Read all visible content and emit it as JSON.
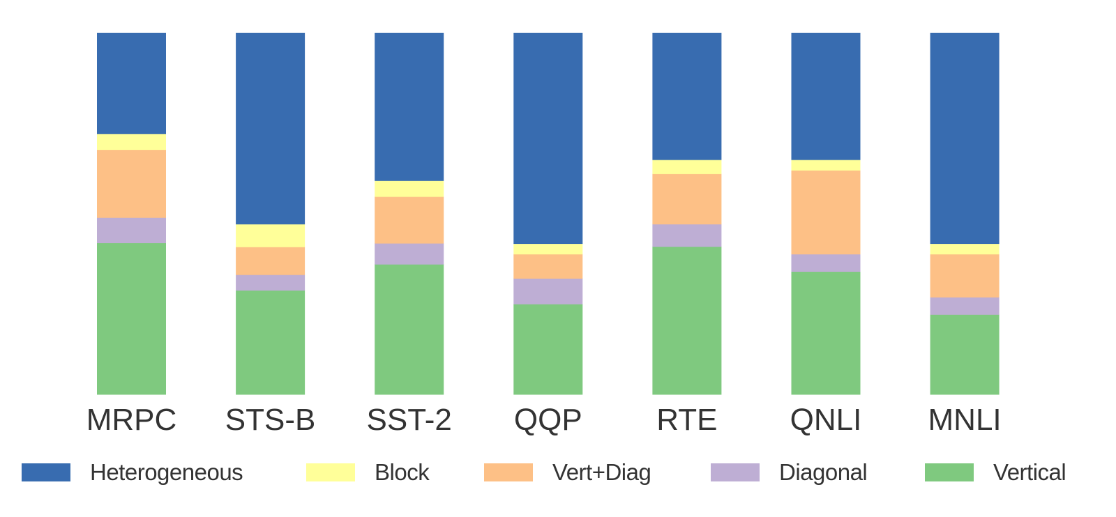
{
  "chart_data": {
    "type": "bar",
    "stacked": true,
    "normalized": true,
    "title": "",
    "xlabel": "",
    "ylabel": "",
    "ylim": [
      0,
      100
    ],
    "grid": false,
    "legend_position": "bottom",
    "categories": [
      "MRPC",
      "STS-B",
      "SST-2",
      "QQP",
      "RTE",
      "QNLI",
      "MNLI"
    ],
    "series": [
      {
        "name": "Vertical",
        "color": "#7fc97f",
        "values": [
          41.9,
          28.8,
          36.0,
          25.0,
          40.9,
          34.0,
          22.1
        ]
      },
      {
        "name": "Diagonal",
        "color": "#beaed4",
        "values": [
          7.0,
          4.3,
          5.8,
          7.1,
          6.2,
          4.8,
          4.8
        ]
      },
      {
        "name": "Vert+Diag",
        "color": "#fdc086",
        "values": [
          18.8,
          7.7,
          12.9,
          6.7,
          13.9,
          23.2,
          11.9
        ]
      },
      {
        "name": "Block",
        "color": "#ffff99",
        "values": [
          4.4,
          6.3,
          4.4,
          2.9,
          3.9,
          2.9,
          2.9
        ]
      },
      {
        "name": "Heterogeneous",
        "color": "#386cb0",
        "values": [
          27.9,
          52.9,
          40.9,
          58.3,
          35.1,
          35.1,
          58.3
        ]
      }
    ],
    "legend": [
      {
        "label": "Heterogeneous",
        "color": "#386cb0"
      },
      {
        "label": "Block",
        "color": "#ffff99"
      },
      {
        "label": "Vert+Diag",
        "color": "#fdc086"
      },
      {
        "label": "Diagonal",
        "color": "#beaed4"
      },
      {
        "label": "Vertical",
        "color": "#7fc97f"
      }
    ]
  }
}
